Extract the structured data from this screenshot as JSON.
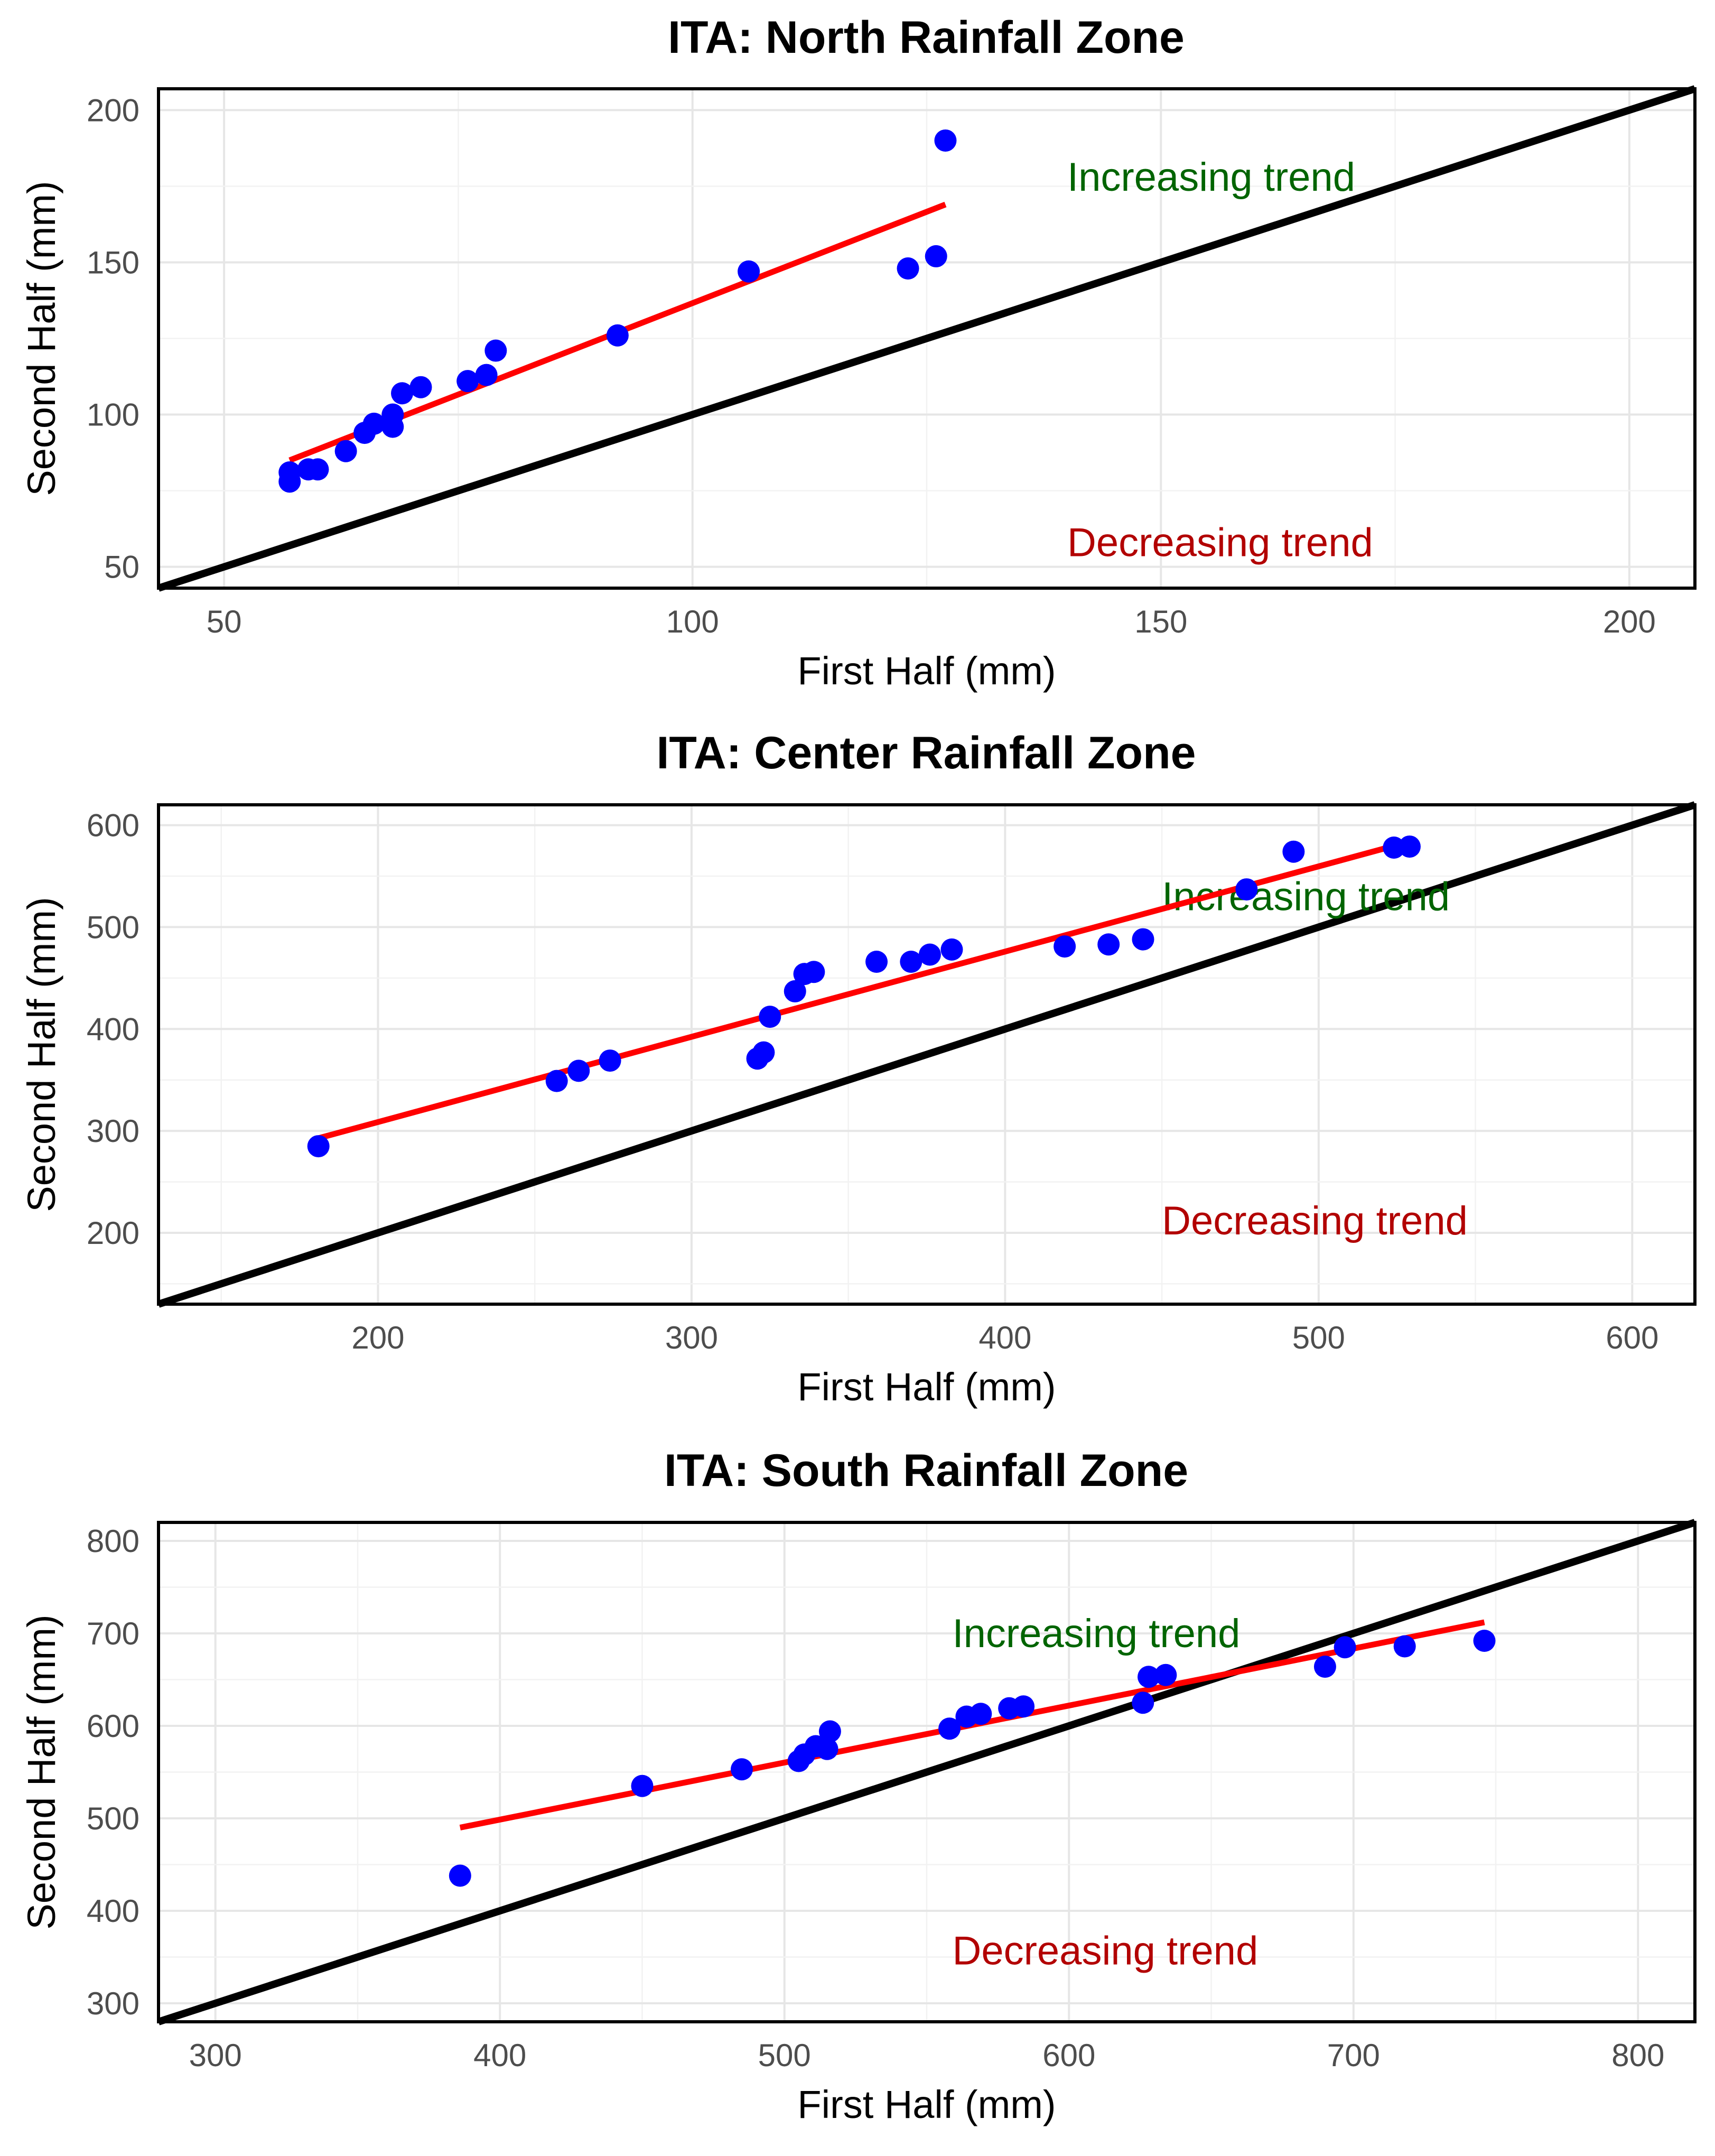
{
  "chart_data": [
    {
      "type": "scatter",
      "title": "ITA: North Rainfall Zone",
      "xlabel": "First Half (mm)",
      "ylabel": "Second Half (mm)",
      "xlim": [
        43,
        207
      ],
      "ylim": [
        43,
        207
      ],
      "xticks": [
        50,
        100,
        150,
        200
      ],
      "yticks": [
        50,
        100,
        150,
        200
      ],
      "tick_labels_x": [
        "50",
        "100",
        "150",
        "200"
      ],
      "tick_labels_y": [
        "50",
        "100",
        "150",
        "200"
      ],
      "reference_line": "1:1",
      "annotations": [
        {
          "text": "Increasing trend",
          "x": 140,
          "y": 178,
          "color": "#006400"
        },
        {
          "text": "Decreasing trend",
          "x": 140,
          "y": 58,
          "color": "#b20000"
        }
      ],
      "points_color": "#0000ff",
      "fit_color": "#ff0000",
      "fit": {
        "x0": 57,
        "y0": 85,
        "x1": 127,
        "y1": 169
      },
      "x": [
        57,
        57,
        59,
        60,
        63,
        65,
        66,
        68,
        68,
        69,
        71,
        76,
        78,
        79,
        92,
        106,
        123,
        126,
        127
      ],
      "y": [
        81,
        78,
        82,
        82,
        88,
        94,
        97,
        96,
        100,
        107,
        109,
        111,
        113,
        121,
        126,
        147,
        148,
        152,
        190
      ]
    },
    {
      "type": "scatter",
      "title": "ITA: Center Rainfall Zone",
      "xlabel": "First Half (mm)",
      "ylabel": "Second Half (mm)",
      "xlim": [
        130,
        620
      ],
      "ylim": [
        130,
        620
      ],
      "xticks": [
        200,
        300,
        400,
        500,
        600
      ],
      "yticks": [
        200,
        300,
        400,
        500,
        600
      ],
      "tick_labels_x": [
        "200",
        "300",
        "400",
        "500",
        "600"
      ],
      "tick_labels_y": [
        "200",
        "300",
        "400",
        "500",
        "600"
      ],
      "reference_line": "1:1",
      "annotations": [
        {
          "text": "Increasing trend",
          "x": 450,
          "y": 530,
          "color": "#006400"
        },
        {
          "text": "Decreasing trend",
          "x": 450,
          "y": 212,
          "color": "#b20000"
        }
      ],
      "points_color": "#0000ff",
      "fit_color": "#ff0000",
      "fit": {
        "x0": 180,
        "y0": 292,
        "x1": 528,
        "y1": 583
      },
      "x": [
        181,
        257,
        264,
        274,
        321,
        323,
        325,
        333,
        336,
        339,
        359,
        370,
        376,
        383,
        419,
        433,
        444,
        477,
        492,
        524,
        529
      ],
      "y": [
        285,
        349,
        359,
        369,
        371,
        377,
        412,
        437,
        454,
        456,
        466,
        466,
        473,
        478,
        481,
        483,
        488,
        537,
        574,
        578,
        579
      ]
    },
    {
      "type": "scatter",
      "title": "ITA: South Rainfall Zone",
      "xlabel": "First Half (mm)",
      "ylabel": "Second Half (mm)",
      "xlim": [
        280,
        820
      ],
      "ylim": [
        280,
        820
      ],
      "xticks": [
        300,
        400,
        500,
        600,
        700,
        800
      ],
      "yticks": [
        300,
        400,
        500,
        600,
        700,
        800
      ],
      "tick_labels_x": [
        "300",
        "400",
        "500",
        "600",
        "700",
        "800"
      ],
      "tick_labels_y": [
        "300",
        "400",
        "500",
        "600",
        "700",
        "800"
      ],
      "reference_line": "1:1",
      "annotations": [
        {
          "text": "Increasing trend",
          "x": 559,
          "y": 700,
          "color": "#006400"
        },
        {
          "text": "Decreasing trend",
          "x": 559,
          "y": 357,
          "color": "#b20000"
        }
      ],
      "points_color": "#0000ff",
      "fit_color": "#ff0000",
      "fit": {
        "x0": 386,
        "y0": 490,
        "x1": 746,
        "y1": 712
      },
      "x": [
        386,
        450,
        485,
        505,
        507,
        511,
        515,
        516,
        558,
        564,
        569,
        579,
        584,
        626,
        628,
        634,
        690,
        697,
        718,
        746
      ],
      "y": [
        438,
        535,
        553,
        562,
        569,
        578,
        575,
        594,
        597,
        610,
        613,
        619,
        621,
        625,
        653,
        655,
        664,
        685,
        686,
        692
      ]
    }
  ]
}
